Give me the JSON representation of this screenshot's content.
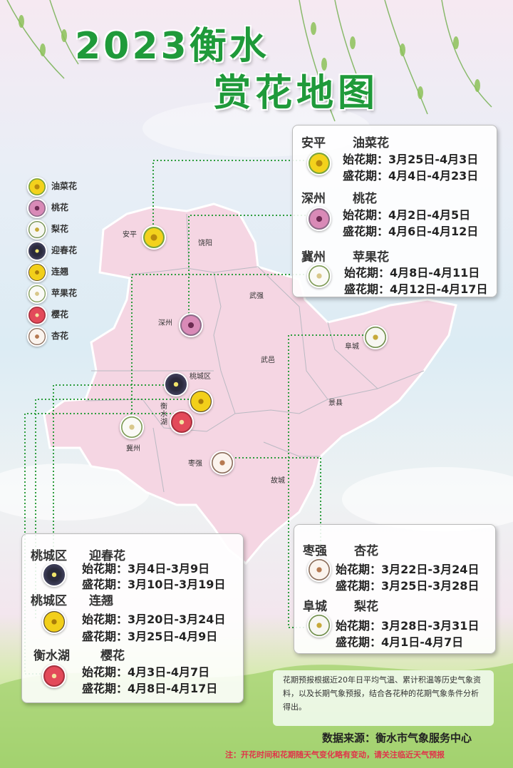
{
  "title": {
    "line1": "2023衡水",
    "line2": "赏花地图"
  },
  "legend": [
    {
      "name": "油菜花",
      "icon": "rapeseed-flower-icon"
    },
    {
      "name": "桃花",
      "icon": "peach-flower-icon"
    },
    {
      "name": "梨花",
      "icon": "pear-flower-icon"
    },
    {
      "name": "迎春花",
      "icon": "winter-jasmine-icon"
    },
    {
      "name": "连翘",
      "icon": "forsythia-icon"
    },
    {
      "name": "苹果花",
      "icon": "apple-flower-icon"
    },
    {
      "name": "樱花",
      "icon": "cherry-blossom-icon"
    },
    {
      "name": "杏花",
      "icon": "apricot-flower-icon"
    }
  ],
  "counties": [
    "安平",
    "饶阳",
    "武强",
    "深州",
    "桃城区",
    "武邑",
    "衡水湖",
    "阜城",
    "景县",
    "冀州",
    "枣强",
    "故城"
  ],
  "top_box": [
    {
      "place": "安平",
      "flower": "油菜花",
      "start": "始花期：3月25日-4月3日",
      "peak": "盛花期：4月4日-4月23日"
    },
    {
      "place": "深州",
      "flower": "桃花",
      "start": "始花期：4月2日-4月5日",
      "peak": "盛花期：4月6日-4月12日"
    },
    {
      "place": "冀州",
      "flower": "苹果花",
      "start": "始花期：4月8日-4月11日",
      "peak": "盛花期：4月12日-4月17日"
    }
  ],
  "left_box": [
    {
      "place": "桃城区",
      "flower": "迎春花",
      "start": "始花期：3月4日-3月9日",
      "peak": "盛花期：3月10日-3月19日"
    },
    {
      "place": "桃城区",
      "flower": "连翘",
      "start": "始花期：3月20日-3月24日",
      "peak": "盛花期：3月25日-4月9日"
    },
    {
      "place": "衡水湖",
      "flower": "樱花",
      "start": "始花期：4月3日-4月7日",
      "peak": "盛花期：4月8日-4月17日"
    }
  ],
  "right_box": [
    {
      "place": "枣强",
      "flower": "杏花",
      "start": "始花期：3月22日-3月24日",
      "peak": "盛花期：3月25日-3月28日"
    },
    {
      "place": "阜城",
      "flower": "梨花",
      "start": "始花期：3月28日-3月31日",
      "peak": "盛花期：4月1日-4月7日"
    }
  ],
  "note": "花期预报根据近20年日平均气温、累计积温等历史气象资料，以及长期气象预报，结合各花种的花期气象条件分析得出。",
  "source": "数据来源：衡水市气象服务中心",
  "warning": "注：开花时间和花期随天气变化略有变动，请关注临近天气预报",
  "colors": {
    "title": "#1f9a3a",
    "map": "#f5d6e3",
    "dotted": "#2e9d3e",
    "warning": "#e0344a"
  }
}
